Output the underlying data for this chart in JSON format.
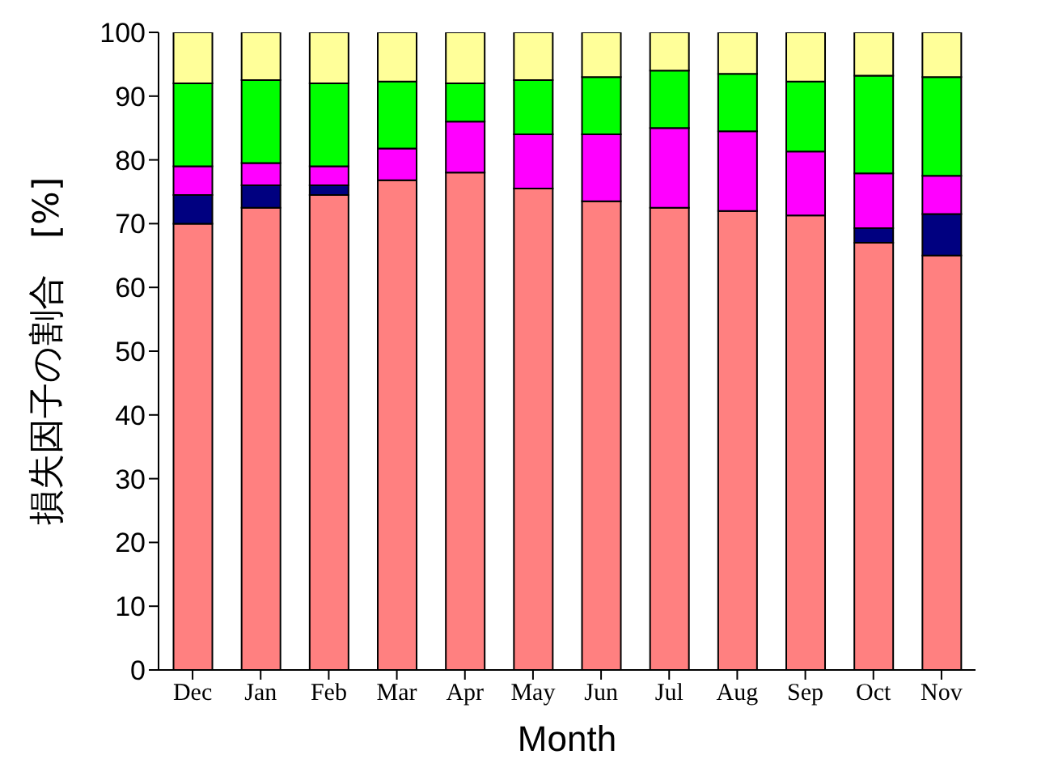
{
  "chart_data": {
    "type": "bar",
    "stacked": true,
    "xlabel": "Month",
    "ylabel": "損失因子の割合　[%]",
    "categories": [
      "Dec",
      "Jan",
      "Feb",
      "Mar",
      "Apr",
      "May",
      "Jun",
      "Jul",
      "Aug",
      "Sep",
      "Oct",
      "Nov"
    ],
    "series": [
      {
        "color": "#ff8080",
        "values": [
          70,
          72.5,
          74.5,
          76.8,
          78,
          75.5,
          73.5,
          72.5,
          72,
          71.3,
          67,
          65
        ]
      },
      {
        "color": "#000080",
        "values": [
          4.5,
          3.5,
          1.5,
          0,
          0,
          0,
          0,
          0,
          0,
          0,
          2.3,
          6.5
        ]
      },
      {
        "color": "#ff00ff",
        "values": [
          4.5,
          3.5,
          3,
          5,
          8,
          8.5,
          10.5,
          12.5,
          12.5,
          10,
          8.6,
          6
        ]
      },
      {
        "color": "#00ff00",
        "values": [
          13,
          13,
          13,
          10.5,
          6,
          8.5,
          9,
          9,
          9,
          11,
          15.3,
          15.5
        ]
      },
      {
        "color": "#ffff99",
        "values": [
          8,
          7.5,
          8,
          7.7,
          8,
          7.5,
          7,
          6,
          6.5,
          7.7,
          6.8,
          7
        ]
      }
    ],
    "ylim": [
      0,
      100
    ],
    "yticks": [
      0,
      10,
      20,
      30,
      40,
      50,
      60,
      70,
      80,
      90,
      100
    ],
    "grid": false,
    "legend": false
  }
}
